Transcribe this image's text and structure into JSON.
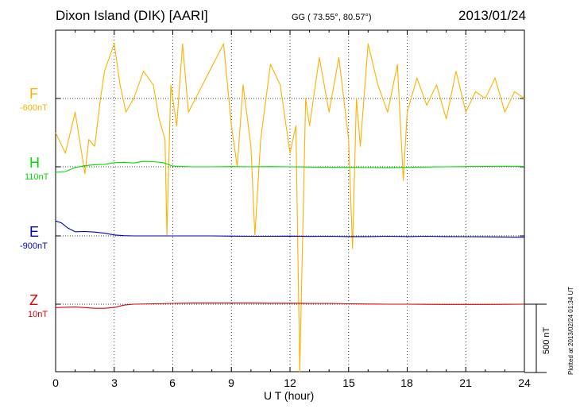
{
  "header": {
    "station": "Dixon Island (DIK)  [AARI]",
    "coords": "GG ( 73.55°,  80.57°)",
    "date": "2013/01/24"
  },
  "scale_label": "500 nT",
  "plotted_label": "Plotted at 2013/02/24 01:34 UT",
  "colors": {
    "F": "#ffb000",
    "H": "#00dd00",
    "E": "#0000cc",
    "Z": "#dd0000"
  },
  "chart_data": {
    "type": "line",
    "xlabel": "U T (hour)",
    "xlim": [
      0,
      24
    ],
    "xticks": [
      "0",
      "3",
      "6",
      "9",
      "12",
      "15",
      "18",
      "21",
      "24"
    ],
    "y_scale_per_channel": "500 nT",
    "series": [
      {
        "name": "F",
        "baseline": "-600nT",
        "x": [
          0,
          0.5,
          1,
          1.5,
          1.7,
          2,
          2.3,
          2.5,
          3,
          3.3,
          3.6,
          4,
          4.5,
          5,
          5.3,
          5.6,
          5.7,
          5.9,
          6.2,
          6.5,
          6.8,
          8.6,
          9,
          9.3,
          9.6,
          10,
          10.2,
          10.5,
          11,
          11.5,
          12,
          12.3,
          12.5,
          12.8,
          13,
          13.5,
          14,
          14.5,
          15,
          15.2,
          15.4,
          15.6,
          16,
          16.5,
          17,
          17.5,
          17.8,
          18,
          18.5,
          19,
          19.5,
          20,
          20.5,
          21,
          21.5,
          22,
          22.5,
          23,
          23.5,
          24
        ],
        "y": [
          -850,
          -1000,
          -700,
          -1150,
          -900,
          -950,
          -600,
          -400,
          -200,
          -500,
          -700,
          -600,
          -400,
          -500,
          -750,
          -900,
          -1600,
          -500,
          -800,
          -200,
          -700,
          -200,
          -800,
          -1100,
          -500,
          -950,
          -1600,
          -900,
          -350,
          -500,
          -1000,
          -800,
          -2600,
          -600,
          -800,
          -300,
          -700,
          -300,
          -900,
          -1700,
          -600,
          -950,
          -200,
          -500,
          -700,
          -350,
          -1200,
          -700,
          -450,
          -650,
          -500,
          -750,
          -400,
          -700,
          -550,
          -600,
          -450,
          -700,
          -550,
          -600
        ]
      },
      {
        "name": "H",
        "baseline": "110nT",
        "x": [
          0,
          0.5,
          1,
          1.5,
          2,
          2.5,
          3,
          3.5,
          4,
          4.5,
          5,
          5.5,
          6,
          7,
          8,
          9,
          10,
          11,
          12,
          13,
          14,
          15,
          16,
          17,
          18,
          19,
          20,
          21,
          22,
          23,
          24
        ],
        "y": [
          70,
          75,
          105,
          118,
          125,
          128,
          140,
          143,
          138,
          150,
          148,
          140,
          115,
          110,
          110,
          112,
          110,
          112,
          110,
          108,
          106,
          106,
          104,
          103,
          106,
          108,
          110,
          112,
          113,
          114,
          113
        ]
      },
      {
        "name": "E",
        "baseline": "-900nT",
        "x": [
          0,
          0.3,
          0.6,
          1,
          1.5,
          2,
          2.5,
          3,
          3.5,
          4,
          5,
          6,
          7,
          8,
          9,
          10,
          11,
          12,
          13,
          14,
          15,
          16,
          17,
          18,
          19,
          20,
          21,
          22,
          23,
          24
        ],
        "y": [
          -790,
          -805,
          -840,
          -870,
          -868,
          -872,
          -880,
          -893,
          -898,
          -900,
          -900,
          -900,
          -900,
          -900,
          -902,
          -903,
          -903,
          -902,
          -904,
          -903,
          -905,
          -905,
          -903,
          -905,
          -903,
          -905,
          -906,
          -907,
          -908,
          -910
        ]
      },
      {
        "name": "Z",
        "baseline": "10nT",
        "x": [
          0,
          1,
          2,
          2.5,
          3,
          3.5,
          4,
          5,
          6,
          7,
          8,
          9,
          10,
          11,
          12,
          13,
          14,
          15,
          16,
          17,
          18,
          19,
          20,
          21,
          22,
          23,
          24
        ],
        "y": [
          -15,
          -10,
          -20,
          -20,
          -14,
          3,
          10,
          13,
          16,
          18,
          18,
          18,
          18,
          17,
          17,
          16,
          16,
          13,
          11,
          10,
          10,
          9,
          8,
          8,
          8,
          9,
          10
        ]
      }
    ]
  }
}
